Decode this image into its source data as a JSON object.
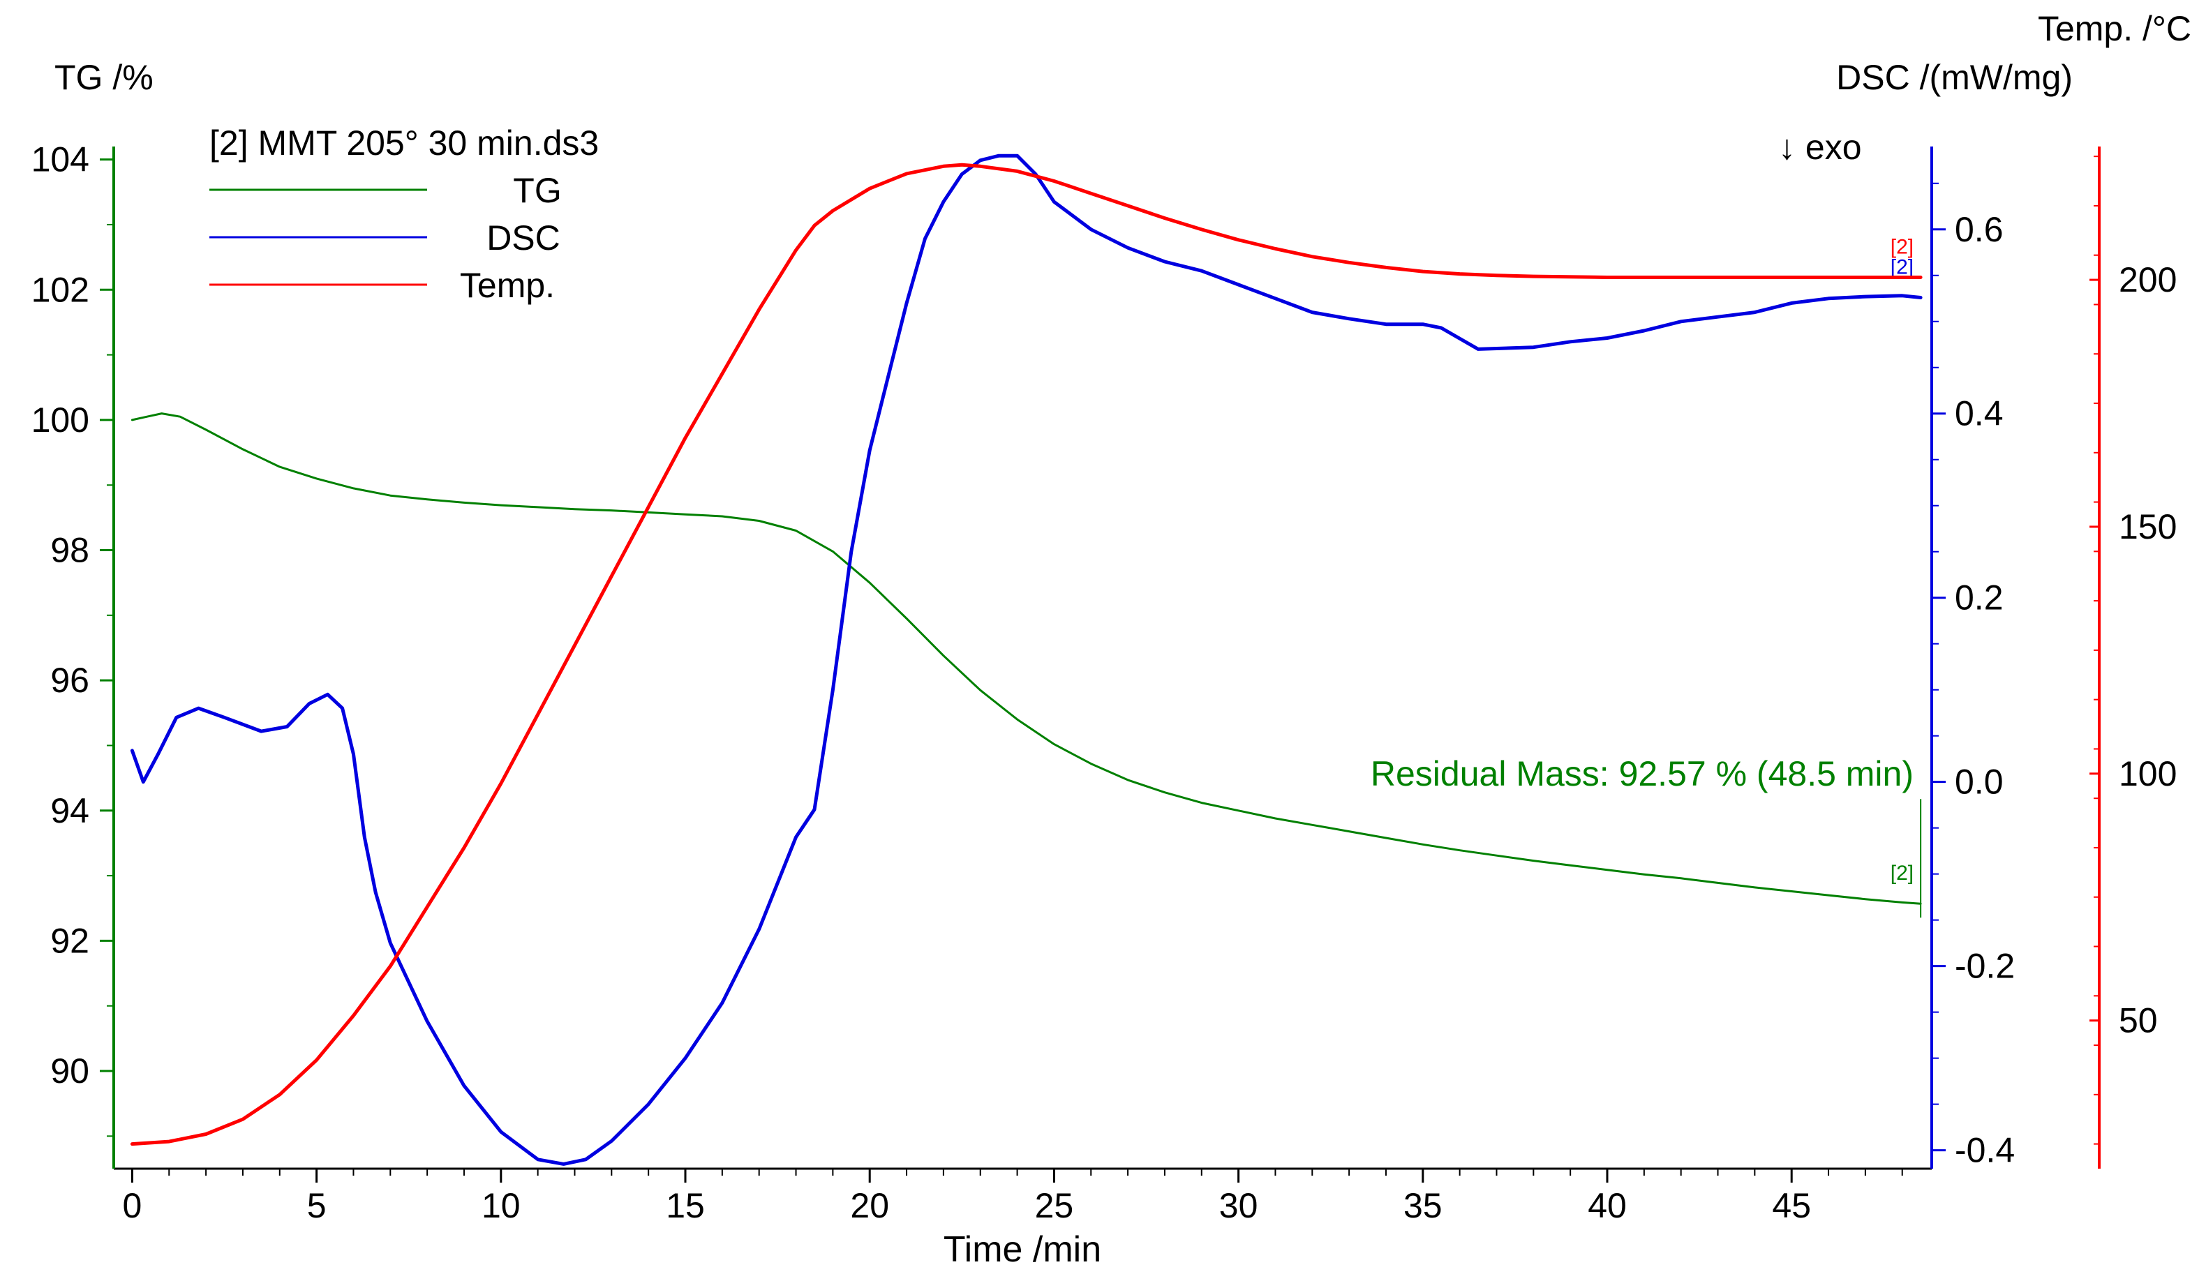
{
  "chart_data": {
    "type": "line",
    "title": "[2] MMT 205° 30 min.ds3",
    "xlabel": "Time /min",
    "xlim": [
      -0.5,
      48.8
    ],
    "xticks": [
      0,
      5,
      10,
      15,
      20,
      25,
      30,
      35,
      40,
      45
    ],
    "exo_label": "↓ exo",
    "annotation": "Residual Mass: 92.57 % (48.5 min)",
    "axes": {
      "tg": {
        "label": "TG /%",
        "ylim": [
          88.5,
          104.2
        ],
        "ticks": [
          90,
          92,
          94,
          96,
          98,
          100,
          102,
          104
        ],
        "color": "#008000"
      },
      "dsc": {
        "label": "DSC /(mW/mg)",
        "ylim": [
          -0.42,
          0.69
        ],
        "ticks": [
          -0.4,
          -0.2,
          0.0,
          0.2,
          0.4,
          0.6
        ],
        "tick_labels": [
          "-0.4",
          "-0.2",
          "0.0",
          "0.2",
          "0.4",
          "0.6"
        ],
        "color": "#0000e0"
      },
      "temp": {
        "label": "Temp. /°C",
        "ylim": [
          20,
          227
        ],
        "ticks": [
          50,
          100,
          150,
          200
        ],
        "color": "#ff0000"
      }
    },
    "legend": [
      {
        "name": "TG",
        "color": "#008000"
      },
      {
        "name": "DSC",
        "color": "#0000e0"
      },
      {
        "name": "Temp.",
        "color": "#ff0000"
      }
    ],
    "series": [
      {
        "name": "TG",
        "axis": "tg",
        "color": "#008000",
        "end_label": "[2]",
        "x": [
          0,
          0.4,
          0.8,
          1.3,
          2,
          3,
          4,
          5,
          6,
          7,
          8,
          9,
          10,
          11,
          12,
          13,
          14,
          15,
          16,
          17,
          18,
          19,
          20,
          21,
          22,
          23,
          24,
          25,
          26,
          27,
          28,
          29,
          30,
          31,
          32,
          33,
          34,
          35,
          36,
          37,
          38,
          39,
          40,
          41,
          42,
          43,
          44,
          45,
          46,
          47,
          48,
          48.5
        ],
        "values": [
          100.0,
          100.05,
          100.1,
          100.05,
          99.85,
          99.55,
          99.28,
          99.1,
          98.95,
          98.84,
          98.78,
          98.73,
          98.69,
          98.66,
          98.63,
          98.61,
          98.58,
          98.55,
          98.52,
          98.45,
          98.3,
          97.98,
          97.5,
          96.95,
          96.38,
          95.85,
          95.4,
          95.02,
          94.72,
          94.47,
          94.28,
          94.12,
          94.0,
          93.88,
          93.78,
          93.68,
          93.58,
          93.48,
          93.39,
          93.31,
          93.23,
          93.16,
          93.09,
          93.02,
          92.96,
          92.89,
          92.82,
          92.76,
          92.7,
          92.64,
          92.59,
          92.57
        ]
      },
      {
        "name": "DSC",
        "axis": "dsc",
        "color": "#0000e0",
        "end_label": "[2]",
        "x": [
          0,
          0.3,
          0.7,
          1.2,
          1.8,
          2.5,
          3.5,
          4.2,
          4.8,
          5.3,
          5.7,
          6.0,
          6.3,
          6.6,
          7.0,
          8.0,
          9.0,
          10.0,
          11.0,
          11.7,
          12.3,
          13.0,
          14.0,
          15.0,
          16.0,
          17.0,
          18.0,
          18.5,
          19.0,
          19.5,
          20.0,
          20.5,
          21.0,
          21.5,
          22.0,
          22.5,
          23.0,
          23.5,
          24.0,
          24.5,
          25.0,
          26.0,
          27.0,
          28.0,
          29.0,
          30.0,
          31.0,
          32.0,
          33.0,
          34.0,
          35.0,
          35.5,
          36.5,
          38.0,
          39.0,
          40.0,
          41.0,
          42.0,
          43.0,
          44.0,
          45.0,
          46.0,
          47.0,
          48.0,
          48.5
        ],
        "values": [
          0.034,
          0.0,
          0.03,
          0.07,
          0.08,
          0.07,
          0.055,
          0.06,
          0.085,
          0.095,
          0.08,
          0.03,
          -0.06,
          -0.12,
          -0.175,
          -0.26,
          -0.33,
          -0.38,
          -0.41,
          -0.415,
          -0.41,
          -0.39,
          -0.35,
          -0.3,
          -0.24,
          -0.16,
          -0.06,
          -0.03,
          0.1,
          0.25,
          0.36,
          0.44,
          0.52,
          0.59,
          0.63,
          0.66,
          0.675,
          0.68,
          0.68,
          0.66,
          0.63,
          0.6,
          0.58,
          0.565,
          0.555,
          0.54,
          0.525,
          0.51,
          0.503,
          0.497,
          0.497,
          0.493,
          0.47,
          0.472,
          0.478,
          0.482,
          0.49,
          0.5,
          0.505,
          0.51,
          0.52,
          0.525,
          0.527,
          0.528,
          0.526
        ]
      },
      {
        "name": "Temp.",
        "axis": "temp",
        "color": "#ff0000",
        "end_label": "[2]",
        "x": [
          0,
          1,
          2,
          3,
          4,
          5,
          6,
          7,
          8,
          9,
          10,
          11,
          12,
          13,
          14,
          15,
          16,
          17,
          18,
          18.5,
          19,
          20,
          21,
          22,
          22.5,
          23,
          24,
          25,
          26,
          27,
          28,
          29,
          30,
          31,
          32,
          33,
          34,
          35,
          36,
          37,
          38,
          40,
          42,
          44,
          46,
          48,
          48.5
        ],
        "values": [
          25,
          25.5,
          27,
          30,
          35,
          42,
          51,
          61,
          73,
          85,
          98,
          112,
          126,
          140,
          154,
          168,
          181,
          194,
          206,
          211,
          214,
          218.5,
          221.5,
          223,
          223.3,
          223,
          222,
          220,
          217.5,
          215,
          212.5,
          210.2,
          208.1,
          206.3,
          204.7,
          203.5,
          202.5,
          201.7,
          201.2,
          200.9,
          200.7,
          200.5,
          200.5,
          200.5,
          200.5,
          200.5,
          200.5
        ]
      }
    ]
  }
}
